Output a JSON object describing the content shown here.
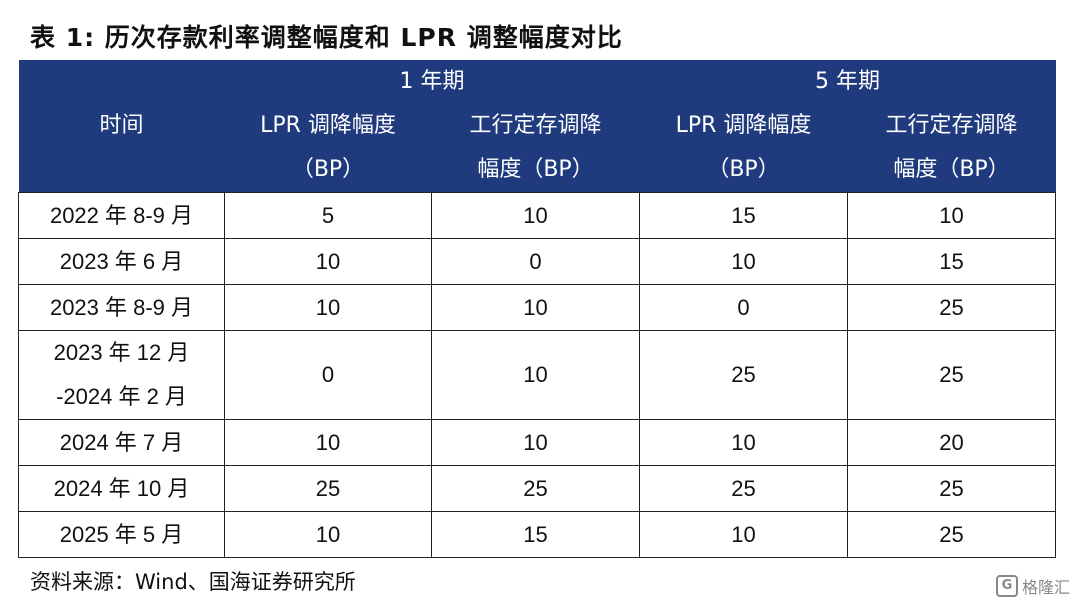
{
  "title": "表 1:  历次存款利率调整幅度和 LPR 调整幅度对比",
  "header": {
    "time": "时间",
    "group_1y": "1 年期",
    "group_5y": "5 年期",
    "lpr_line1": "LPR 调降幅度",
    "lpr_line2": "（BP）",
    "icbc_line1": "工行定存调降",
    "icbc_line2": "幅度（BP）"
  },
  "rows": [
    {
      "date": "2022 年 8-9 月",
      "lpr1y": "5",
      "icbc1y": "10",
      "lpr5y": "15",
      "icbc5y": "10"
    },
    {
      "date": "2023 年 6 月",
      "lpr1y": "10",
      "icbc1y": "0",
      "lpr5y": "10",
      "icbc5y": "15"
    },
    {
      "date": "2023 年 8-9 月",
      "lpr1y": "10",
      "icbc1y": "10",
      "lpr5y": "0",
      "icbc5y": "25"
    },
    {
      "date_line1": "2023 年 12 月",
      "date_line2": "-2024 年 2 月",
      "lpr1y": "0",
      "icbc1y": "10",
      "lpr5y": "25",
      "icbc5y": "25"
    },
    {
      "date": "2024 年 7 月",
      "lpr1y": "10",
      "icbc1y": "10",
      "lpr5y": "10",
      "icbc5y": "20"
    },
    {
      "date": "2024 年 10 月",
      "lpr1y": "25",
      "icbc1y": "25",
      "lpr5y": "25",
      "icbc5y": "25"
    },
    {
      "date": "2025 年 5 月",
      "lpr1y": "10",
      "icbc1y": "15",
      "lpr5y": "10",
      "icbc5y": "25"
    }
  ],
  "source": "资料来源：Wind、国海证券研究所",
  "watermark": "格隆汇",
  "colors": {
    "header_bg": "#1f3a7d"
  }
}
